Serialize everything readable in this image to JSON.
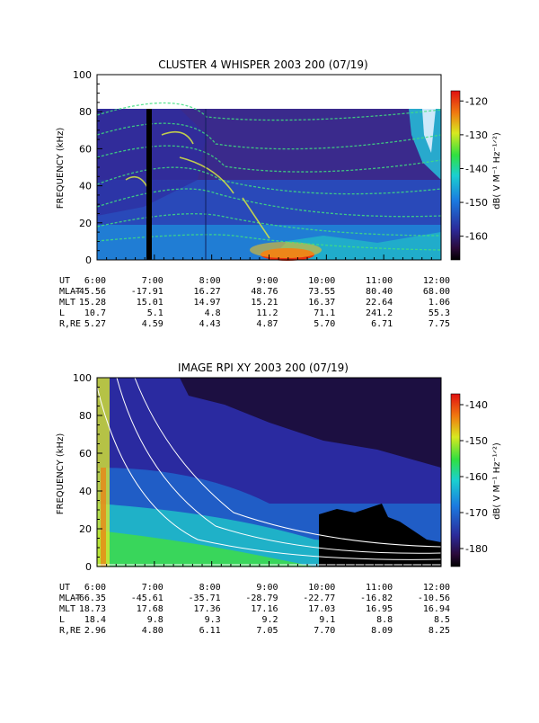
{
  "chart_data": [
    {
      "type": "heatmap",
      "title": "CLUSTER 4 WHISPER 2003 200 (07/19)",
      "ylabel": "FREQUENCY (kHz)",
      "ylim": [
        0,
        100
      ],
      "yticks": [
        "0",
        "20",
        "40",
        "60",
        "80",
        "100"
      ],
      "data_top_khz": 80,
      "colorbar": {
        "label": "dB( V M⁻¹ Hz⁻¹ᐟ²)",
        "ticks": [
          "-120",
          "-130",
          "-140",
          "-150",
          "-160"
        ],
        "range": [
          -167,
          -117
        ]
      },
      "ephemeris": {
        "rows": [
          {
            "label": "UT",
            "values": [
              "6:00",
              "7:00",
              "8:00",
              "9:00",
              "10:00",
              "11:00",
              "12:00"
            ]
          },
          {
            "label": "MLAT",
            "values": [
              "-45.56",
              "-17.91",
              "16.27",
              "48.76",
              "73.55",
              "80.40",
              "68.00"
            ]
          },
          {
            "label": "MLT",
            "values": [
              "15.28",
              "15.01",
              "14.97",
              "15.21",
              "16.37",
              "22.64",
              "1.06"
            ]
          },
          {
            "label": "L",
            "values": [
              "10.7",
              "5.1",
              "4.8",
              "11.2",
              "71.1",
              "241.2",
              "55.3"
            ]
          },
          {
            "label": "R,RE",
            "values": [
              "5.27",
              "4.59",
              "4.43",
              "4.87",
              "5.70",
              "6.71",
              "7.75"
            ]
          }
        ]
      }
    },
    {
      "type": "heatmap",
      "title": "IMAGE RPI XY 2003 200 (07/19)",
      "ylabel": "FREQUENCY (kHz)",
      "ylim": [
        0,
        100
      ],
      "yticks": [
        "0",
        "20",
        "40",
        "60",
        "80",
        "100"
      ],
      "colorbar": {
        "label": "dB( V M⁻¹ Hz⁻¹ᐟ²)",
        "ticks": [
          "-140",
          "-150",
          "-160",
          "-170",
          "-180"
        ],
        "range": [
          -185,
          -137
        ]
      },
      "ephemeris": {
        "rows": [
          {
            "label": "UT",
            "values": [
              "6:00",
              "7:00",
              "8:00",
              "9:00",
              "10:00",
              "11:00",
              "12:00"
            ]
          },
          {
            "label": "MLAT",
            "values": [
              "-66.35",
              "-45.61",
              "-35.71",
              "-28.79",
              "-22.77",
              "-16.82",
              "-10.56"
            ]
          },
          {
            "label": "MLT",
            "values": [
              "18.73",
              "17.68",
              "17.36",
              "17.16",
              "17.03",
              "16.95",
              "16.94"
            ]
          },
          {
            "label": "L",
            "values": [
              "18.4",
              "9.8",
              "9.3",
              "9.2",
              "9.1",
              "8.8",
              "8.5"
            ]
          },
          {
            "label": "R,RE",
            "values": [
              "2.96",
              "4.80",
              "6.11",
              "7.05",
              "7.70",
              "8.09",
              "8.25"
            ]
          }
        ]
      }
    }
  ]
}
